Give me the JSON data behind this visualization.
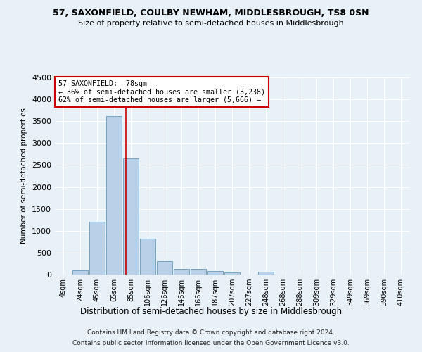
{
  "title": "57, SAXONFIELD, COULBY NEWHAM, MIDDLESBROUGH, TS8 0SN",
  "subtitle": "Size of property relative to semi-detached houses in Middlesbrough",
  "xlabel": "Distribution of semi-detached houses by size in Middlesbrough",
  "ylabel": "Number of semi-detached properties",
  "bar_color": "#b8d0e8",
  "bar_edge_color": "#6699bb",
  "categories": [
    "4sqm",
    "24sqm",
    "45sqm",
    "65sqm",
    "85sqm",
    "106sqm",
    "126sqm",
    "146sqm",
    "166sqm",
    "187sqm",
    "207sqm",
    "227sqm",
    "248sqm",
    "268sqm",
    "288sqm",
    "309sqm",
    "329sqm",
    "349sqm",
    "369sqm",
    "390sqm",
    "410sqm"
  ],
  "values": [
    0,
    100,
    1200,
    3620,
    2650,
    820,
    300,
    130,
    130,
    80,
    50,
    0,
    60,
    0,
    0,
    0,
    0,
    0,
    0,
    0,
    0
  ],
  "ylim": [
    0,
    4500
  ],
  "vline_pos": 3.72,
  "annotation_title": "57 SAXONFIELD:  78sqm",
  "annotation_line1": "← 36% of semi-detached houses are smaller (3,238)",
  "annotation_line2": "62% of semi-detached houses are larger (5,666) →",
  "footer1": "Contains HM Land Registry data © Crown copyright and database right 2024.",
  "footer2": "Contains public sector information licensed under the Open Government Licence v3.0.",
  "bg_color": "#e8f0f8",
  "annotation_box_color": "#ffffff",
  "annotation_box_edge": "#cc0000",
  "vline_color": "#cc0000"
}
